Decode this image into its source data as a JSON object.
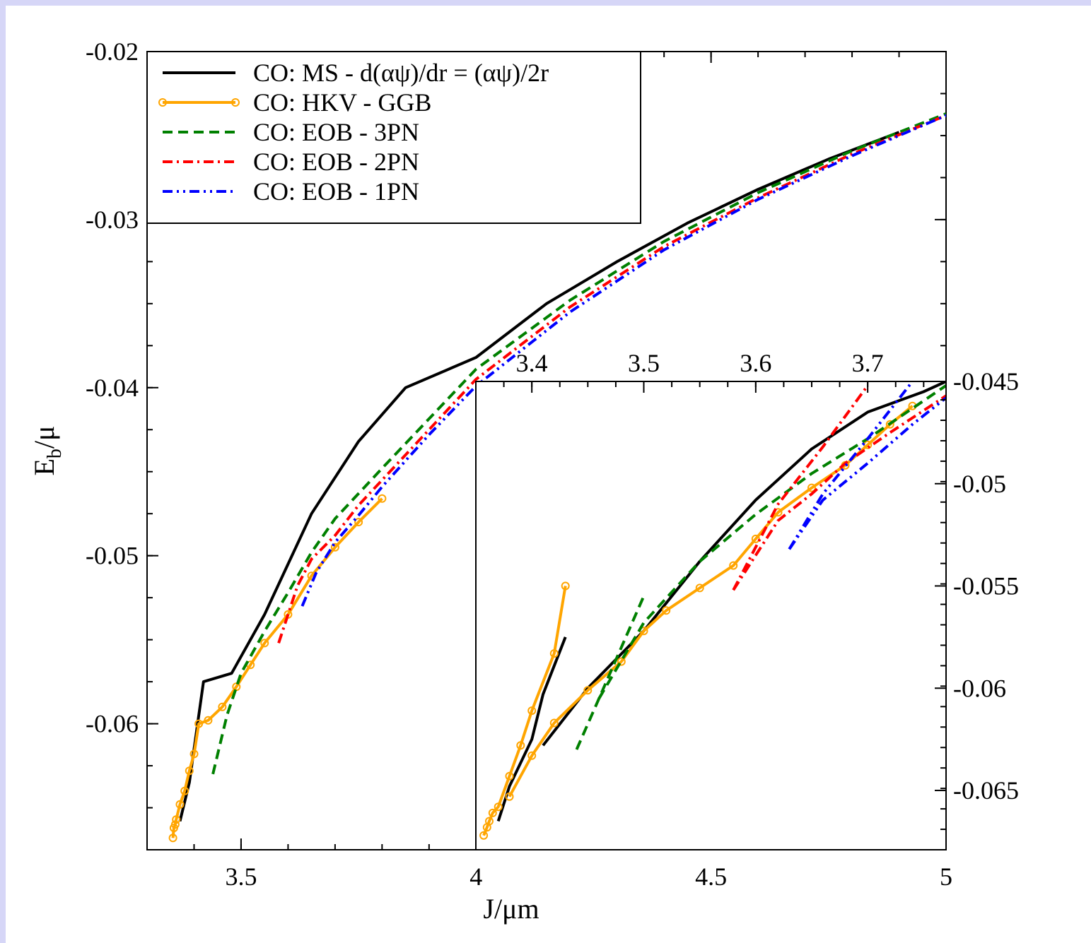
{
  "chart_data": [
    {
      "type": "line",
      "panel": "main",
      "xlabel": "J/μm",
      "ylabel": "E",
      "ylabel_sub": "b",
      "ylabel_tail": "/μ",
      "xlim": [
        3.3,
        5.0
      ],
      "ylim": [
        -0.0675,
        -0.02
      ],
      "x_ticks": [
        "3.5",
        "4",
        "4.5",
        "5"
      ],
      "y_ticks": [
        "-0.02",
        "-0.03",
        "-0.04",
        "-0.05",
        "-0.06"
      ],
      "legend": "top-left",
      "series": [
        {
          "name": "CO: MS - d(αψ)/dr = (αψ)/2r",
          "color": "#000000",
          "dash": "solid",
          "markers": false,
          "x": [
            3.37,
            3.39,
            3.42,
            3.48,
            3.55,
            3.65,
            3.75,
            3.85,
            4.0,
            4.15,
            4.3,
            4.45,
            4.6,
            4.75,
            4.9
          ],
          "y": [
            -0.0658,
            -0.0635,
            -0.0575,
            -0.057,
            -0.0535,
            -0.0475,
            -0.0432,
            -0.04,
            -0.0382,
            -0.035,
            -0.0325,
            -0.0302,
            -0.0282,
            -0.0264,
            -0.0248
          ]
        },
        {
          "name": "CO: HKV - GGB",
          "color": "#ffa500",
          "dash": "solid",
          "markers": true,
          "x": [
            3.355,
            3.357,
            3.36,
            3.362,
            3.37,
            3.38,
            3.39,
            3.4,
            3.41,
            3.43,
            3.46,
            3.49,
            3.52,
            3.55,
            3.6,
            3.65,
            3.7,
            3.75,
            3.8
          ],
          "y": [
            -0.0668,
            -0.0662,
            -0.066,
            -0.0657,
            -0.0648,
            -0.064,
            -0.0628,
            -0.0618,
            -0.06,
            -0.0598,
            -0.059,
            -0.0578,
            -0.0565,
            -0.0552,
            -0.0535,
            -0.0512,
            -0.0495,
            -0.048,
            -0.0466
          ]
        },
        {
          "name": "CO: EOB - 3PN",
          "color": "#008000",
          "dash": "14,8",
          "markers": false,
          "x": [
            3.44,
            3.47,
            3.5,
            3.55,
            3.6,
            3.65,
            3.7,
            3.8,
            4.0,
            4.2,
            4.4,
            4.6,
            4.8,
            5.0
          ],
          "y": [
            -0.063,
            -0.0595,
            -0.057,
            -0.0545,
            -0.0522,
            -0.0498,
            -0.0478,
            -0.0448,
            -0.0389,
            -0.0348,
            -0.0313,
            -0.0284,
            -0.0259,
            -0.0237
          ]
        },
        {
          "name": "CO: EOB - 2PN",
          "color": "#ff0000",
          "dash": "14,6,3,6",
          "markers": false,
          "x": [
            3.58,
            3.6,
            3.62,
            3.65,
            3.7,
            3.75,
            3.8,
            3.9,
            4.0,
            4.2,
            4.4,
            4.6,
            4.8,
            5.0
          ],
          "y": [
            -0.0552,
            -0.0535,
            -0.0518,
            -0.0502,
            -0.0488,
            -0.047,
            -0.0455,
            -0.0425,
            -0.0395,
            -0.0352,
            -0.0316,
            -0.0287,
            -0.0261,
            -0.0238
          ]
        },
        {
          "name": "CO: EOB - 1PN",
          "color": "#0000ff",
          "dash": "14,6,3,6,3,6",
          "markers": false,
          "x": [
            3.63,
            3.66,
            3.7,
            3.75,
            3.8,
            3.9,
            4.0,
            4.2,
            4.4,
            4.6,
            4.8,
            5.0
          ],
          "y": [
            -0.053,
            -0.051,
            -0.0492,
            -0.0476,
            -0.0459,
            -0.0428,
            -0.0399,
            -0.0355,
            -0.0318,
            -0.0288,
            -0.0262,
            -0.0238
          ]
        }
      ]
    },
    {
      "type": "line",
      "panel": "inset",
      "xlim": [
        3.35,
        3.77
      ],
      "ylim": [
        -0.0679,
        -0.045
      ],
      "x_ticks": [
        "3.4",
        "3.5",
        "3.6",
        "3.7"
      ],
      "y_ticks": [
        "-0.045",
        "-0.05",
        "-0.055",
        "-0.06",
        "-0.065"
      ],
      "series": [
        {
          "name": "CO: MS - d(αψ)/dr = (αψ)/2r",
          "color": "#000000",
          "dash": "solid",
          "markers": false,
          "x": [
            3.37,
            3.38,
            3.4,
            3.41,
            3.43
          ],
          "y": [
            -0.0665,
            -0.0648,
            -0.0625,
            -0.0603,
            -0.0575
          ]
        },
        {
          "name": "CO: MS - d(αψ)/dr = (αψ)/2r",
          "color": "#000000",
          "dash": "solid",
          "markers": false,
          "x": [
            3.41,
            3.45,
            3.5,
            3.55,
            3.6,
            3.65,
            3.7,
            3.75,
            3.77
          ],
          "y": [
            -0.0628,
            -0.06,
            -0.0572,
            -0.0538,
            -0.0508,
            -0.0483,
            -0.0465,
            -0.0455,
            -0.045
          ]
        },
        {
          "name": "CO: HKV - GGB",
          "color": "#ffa500",
          "dash": "solid",
          "markers": true,
          "x": [
            3.357,
            3.36,
            3.362,
            3.365,
            3.37,
            3.38,
            3.39,
            3.4,
            3.42,
            3.43
          ],
          "y": [
            -0.0672,
            -0.0668,
            -0.0665,
            -0.0661,
            -0.0658,
            -0.0643,
            -0.0628,
            -0.0611,
            -0.0583,
            -0.055
          ]
        },
        {
          "name": "CO: HKV - GGB",
          "color": "#ffa500",
          "dash": "solid",
          "markers": true,
          "x": [
            3.38,
            3.4,
            3.42,
            3.45,
            3.48,
            3.5,
            3.52,
            3.55,
            3.58,
            3.6,
            3.62,
            3.65,
            3.68,
            3.7,
            3.72,
            3.74
          ],
          "y": [
            -0.0653,
            -0.0633,
            -0.0617,
            -0.0601,
            -0.0587,
            -0.0572,
            -0.0562,
            -0.0551,
            -0.054,
            -0.0527,
            -0.0514,
            -0.0502,
            -0.0491,
            -0.0481,
            -0.0471,
            -0.0462
          ]
        },
        {
          "name": "CO: EOB - 3PN",
          "color": "#008000",
          "dash": "14,8",
          "markers": false,
          "x": [
            3.44,
            3.46,
            3.48,
            3.5
          ],
          "y": [
            -0.063,
            -0.0605,
            -0.058,
            -0.0555
          ]
        },
        {
          "name": "CO: EOB - 3PN",
          "color": "#008000",
          "dash": "14,8",
          "markers": false,
          "x": [
            3.46,
            3.5,
            3.55,
            3.6,
            3.65,
            3.7,
            3.77
          ],
          "y": [
            -0.0605,
            -0.0568,
            -0.0538,
            -0.0515,
            -0.0495,
            -0.0478,
            -0.0452
          ]
        },
        {
          "name": "CO: EOB - 2PN",
          "color": "#ff0000",
          "dash": "14,6,3,6",
          "markers": false,
          "x": [
            3.58,
            3.6,
            3.62,
            3.65,
            3.68,
            3.72,
            3.77
          ],
          "y": [
            -0.0552,
            -0.0535,
            -0.0518,
            -0.0505,
            -0.049,
            -0.0475,
            -0.0457
          ]
        },
        {
          "name": "CO: EOB - 2PN",
          "color": "#ff0000",
          "dash": "14,6,3,6",
          "markers": false,
          "x": [
            3.58,
            3.62,
            3.66,
            3.7
          ],
          "y": [
            -0.0552,
            -0.051,
            -0.0482,
            -0.0452
          ]
        },
        {
          "name": "CO: EOB - 1PN",
          "color": "#0000ff",
          "dash": "14,6,3,6,3,6",
          "markers": false,
          "x": [
            3.63,
            3.66,
            3.7,
            3.74,
            3.77
          ],
          "y": [
            -0.0532,
            -0.0508,
            -0.049,
            -0.0471,
            -0.0458
          ]
        },
        {
          "name": "CO: EOB - 1PN",
          "color": "#0000ff",
          "dash": "14,6,3,6,3,6",
          "markers": false,
          "x": [
            3.63,
            3.66,
            3.7,
            3.74
          ],
          "y": [
            -0.0532,
            -0.0505,
            -0.0478,
            -0.045
          ]
        }
      ]
    }
  ]
}
